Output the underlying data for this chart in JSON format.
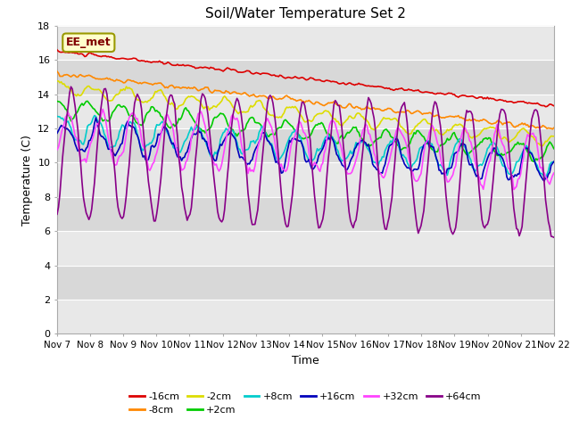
{
  "title": "Soil/Water Temperature Set 2",
  "xlabel": "Time",
  "ylabel": "Temperature (C)",
  "ylim": [
    0,
    18
  ],
  "yticks": [
    0,
    2,
    4,
    6,
    8,
    10,
    12,
    14,
    16,
    18
  ],
  "annotation_text": "EE_met",
  "annotation_color": "#800000",
  "annotation_bg": "#ffffcc",
  "annotation_edge": "#999900",
  "plot_bg_light": "#e8e8e8",
  "plot_bg_dark": "#d0d0d0",
  "title_fontsize": 11,
  "x_start": 7,
  "x_end": 22,
  "n_points": 360,
  "xtick_days": [
    7,
    8,
    9,
    10,
    11,
    12,
    13,
    14,
    15,
    16,
    17,
    18,
    19,
    20,
    21,
    22
  ],
  "xtick_labels": [
    "Nov 7",
    "Nov 8",
    "Nov 9",
    "Nov 10",
    "Nov 11",
    "Nov 12",
    "Nov 13",
    "Nov 14",
    "Nov 15",
    "Nov 16",
    "Nov 17",
    "Nov 18",
    "Nov 19",
    "Nov 20",
    "Nov 21",
    "Nov 22"
  ],
  "legend_order": [
    "-16cm",
    "-8cm",
    "-2cm",
    "+2cm",
    "+8cm",
    "+16cm",
    "+32cm",
    "+64cm"
  ],
  "legend_colors": {
    "-16cm": "#dd0000",
    "-8cm": "#ff8800",
    "-2cm": "#dddd00",
    "+2cm": "#00cc00",
    "+8cm": "#00cccc",
    "+16cm": "#0000bb",
    "+32cm": "#ff44ff",
    "+64cm": "#880088"
  },
  "band_colors": [
    "#e8e8e8",
    "#d8d8d8"
  ]
}
